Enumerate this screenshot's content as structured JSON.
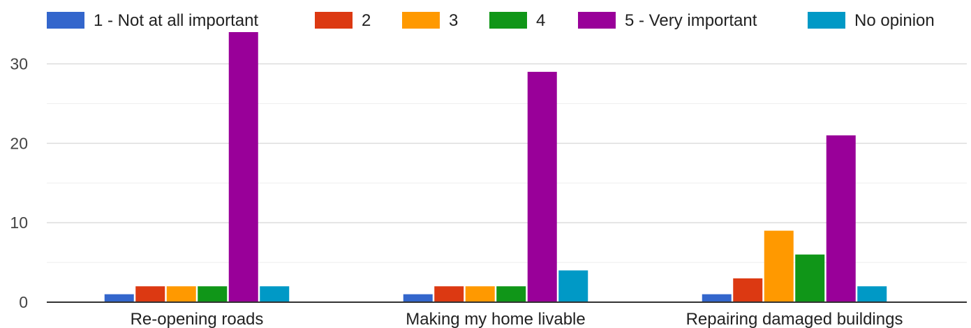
{
  "chart_data": {
    "type": "bar",
    "categories": [
      "Re-opening roads",
      "Making my home livable",
      "Repairing damaged buildings"
    ],
    "series": [
      {
        "name": "1 - Not at all important",
        "color": "#3366cc",
        "values": [
          1,
          1,
          1
        ]
      },
      {
        "name": "2",
        "color": "#dc3912",
        "values": [
          2,
          2,
          3
        ]
      },
      {
        "name": "3",
        "color": "#ff9900",
        "values": [
          2,
          2,
          9
        ]
      },
      {
        "name": "4",
        "color": "#109618",
        "values": [
          2,
          2,
          6
        ]
      },
      {
        "name": "5 - Very important",
        "color": "#990099",
        "values": [
          34,
          29,
          21
        ]
      },
      {
        "name": "No opinion",
        "color": "#0099c6",
        "values": [
          2,
          4,
          2
        ]
      }
    ],
    "yticks": [
      0,
      10,
      20,
      30
    ],
    "ylim": [
      0,
      35
    ],
    "grid": true,
    "legend_position": "top"
  }
}
